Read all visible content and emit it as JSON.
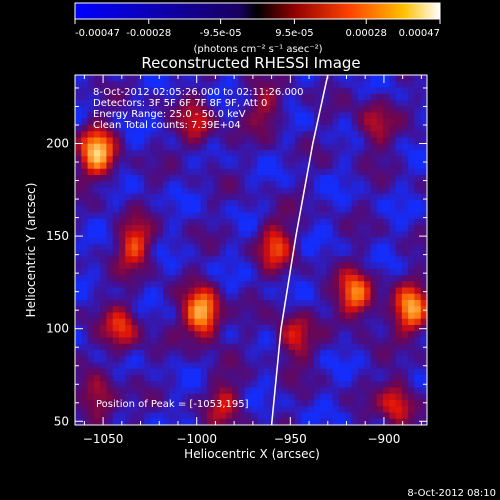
{
  "colorbar": {
    "ticks": [
      "-0.00047",
      "-0.00028",
      "-9.5e-05",
      "9.5e-05",
      "0.00028",
      "0.00047"
    ],
    "tick_values": [
      -0.00047,
      -0.00028,
      -9.5e-05,
      9.5e-05,
      0.00028,
      0.00047
    ],
    "units_label": "(photons cm⁻² s⁻¹ asec⁻²)",
    "range": [
      -0.00047,
      0.00047
    ]
  },
  "chart_data": {
    "type": "heatmap",
    "title": "Reconstructed RHESSI Image",
    "xlabel": "Heliocentric X (arcsec)",
    "ylabel": "Heliocentric Y (arcsec)",
    "xlim": [
      -1065,
      -877
    ],
    "ylim": [
      48,
      237
    ],
    "xticks": [
      -1050,
      -1000,
      -950,
      -900
    ],
    "yticks": [
      50,
      100,
      150,
      200
    ],
    "annotations": [
      "8-Oct-2012 02:05:26.000 to 02:11:26.000",
      "Detectors: 3F 5F 6F 7F 8F 9F, Att 0",
      "Energy Range: 25.0 - 50.0 keV",
      "Clean    Total counts: 7.39E+04"
    ],
    "peak_label": "Position of Peak = [-1053,195]",
    "peak": [
      -1053,
      195
    ],
    "limb_curve": [
      [
        -960,
        48
      ],
      [
        -955,
        100
      ],
      [
        -947,
        150
      ],
      [
        -938,
        200
      ],
      [
        -930,
        237
      ]
    ],
    "sources": [
      {
        "x": -997,
        "y": 108,
        "amplitude": 1.0
      },
      {
        "x": -885,
        "y": 110,
        "amplitude": 0.85
      },
      {
        "x": -1053,
        "y": 195,
        "amplitude": 0.95
      },
      {
        "x": -915,
        "y": 118,
        "amplitude": 0.8
      },
      {
        "x": -1033,
        "y": 145,
        "amplitude": 0.6
      },
      {
        "x": -1040,
        "y": 100,
        "amplitude": 0.55
      },
      {
        "x": -958,
        "y": 145,
        "amplitude": 0.55
      },
      {
        "x": -948,
        "y": 95,
        "amplitude": 0.5
      },
      {
        "x": -1000,
        "y": 210,
        "amplitude": 0.45
      },
      {
        "x": -893,
        "y": 60,
        "amplitude": 0.55
      },
      {
        "x": -985,
        "y": 60,
        "amplitude": 0.4
      },
      {
        "x": -1052,
        "y": 60,
        "amplitude": 0.45
      },
      {
        "x": -905,
        "y": 210,
        "amplitude": 0.4
      },
      {
        "x": -963,
        "y": 218,
        "amplitude": 0.35
      }
    ]
  },
  "timestamp": "8-Oct-2012 08:10"
}
